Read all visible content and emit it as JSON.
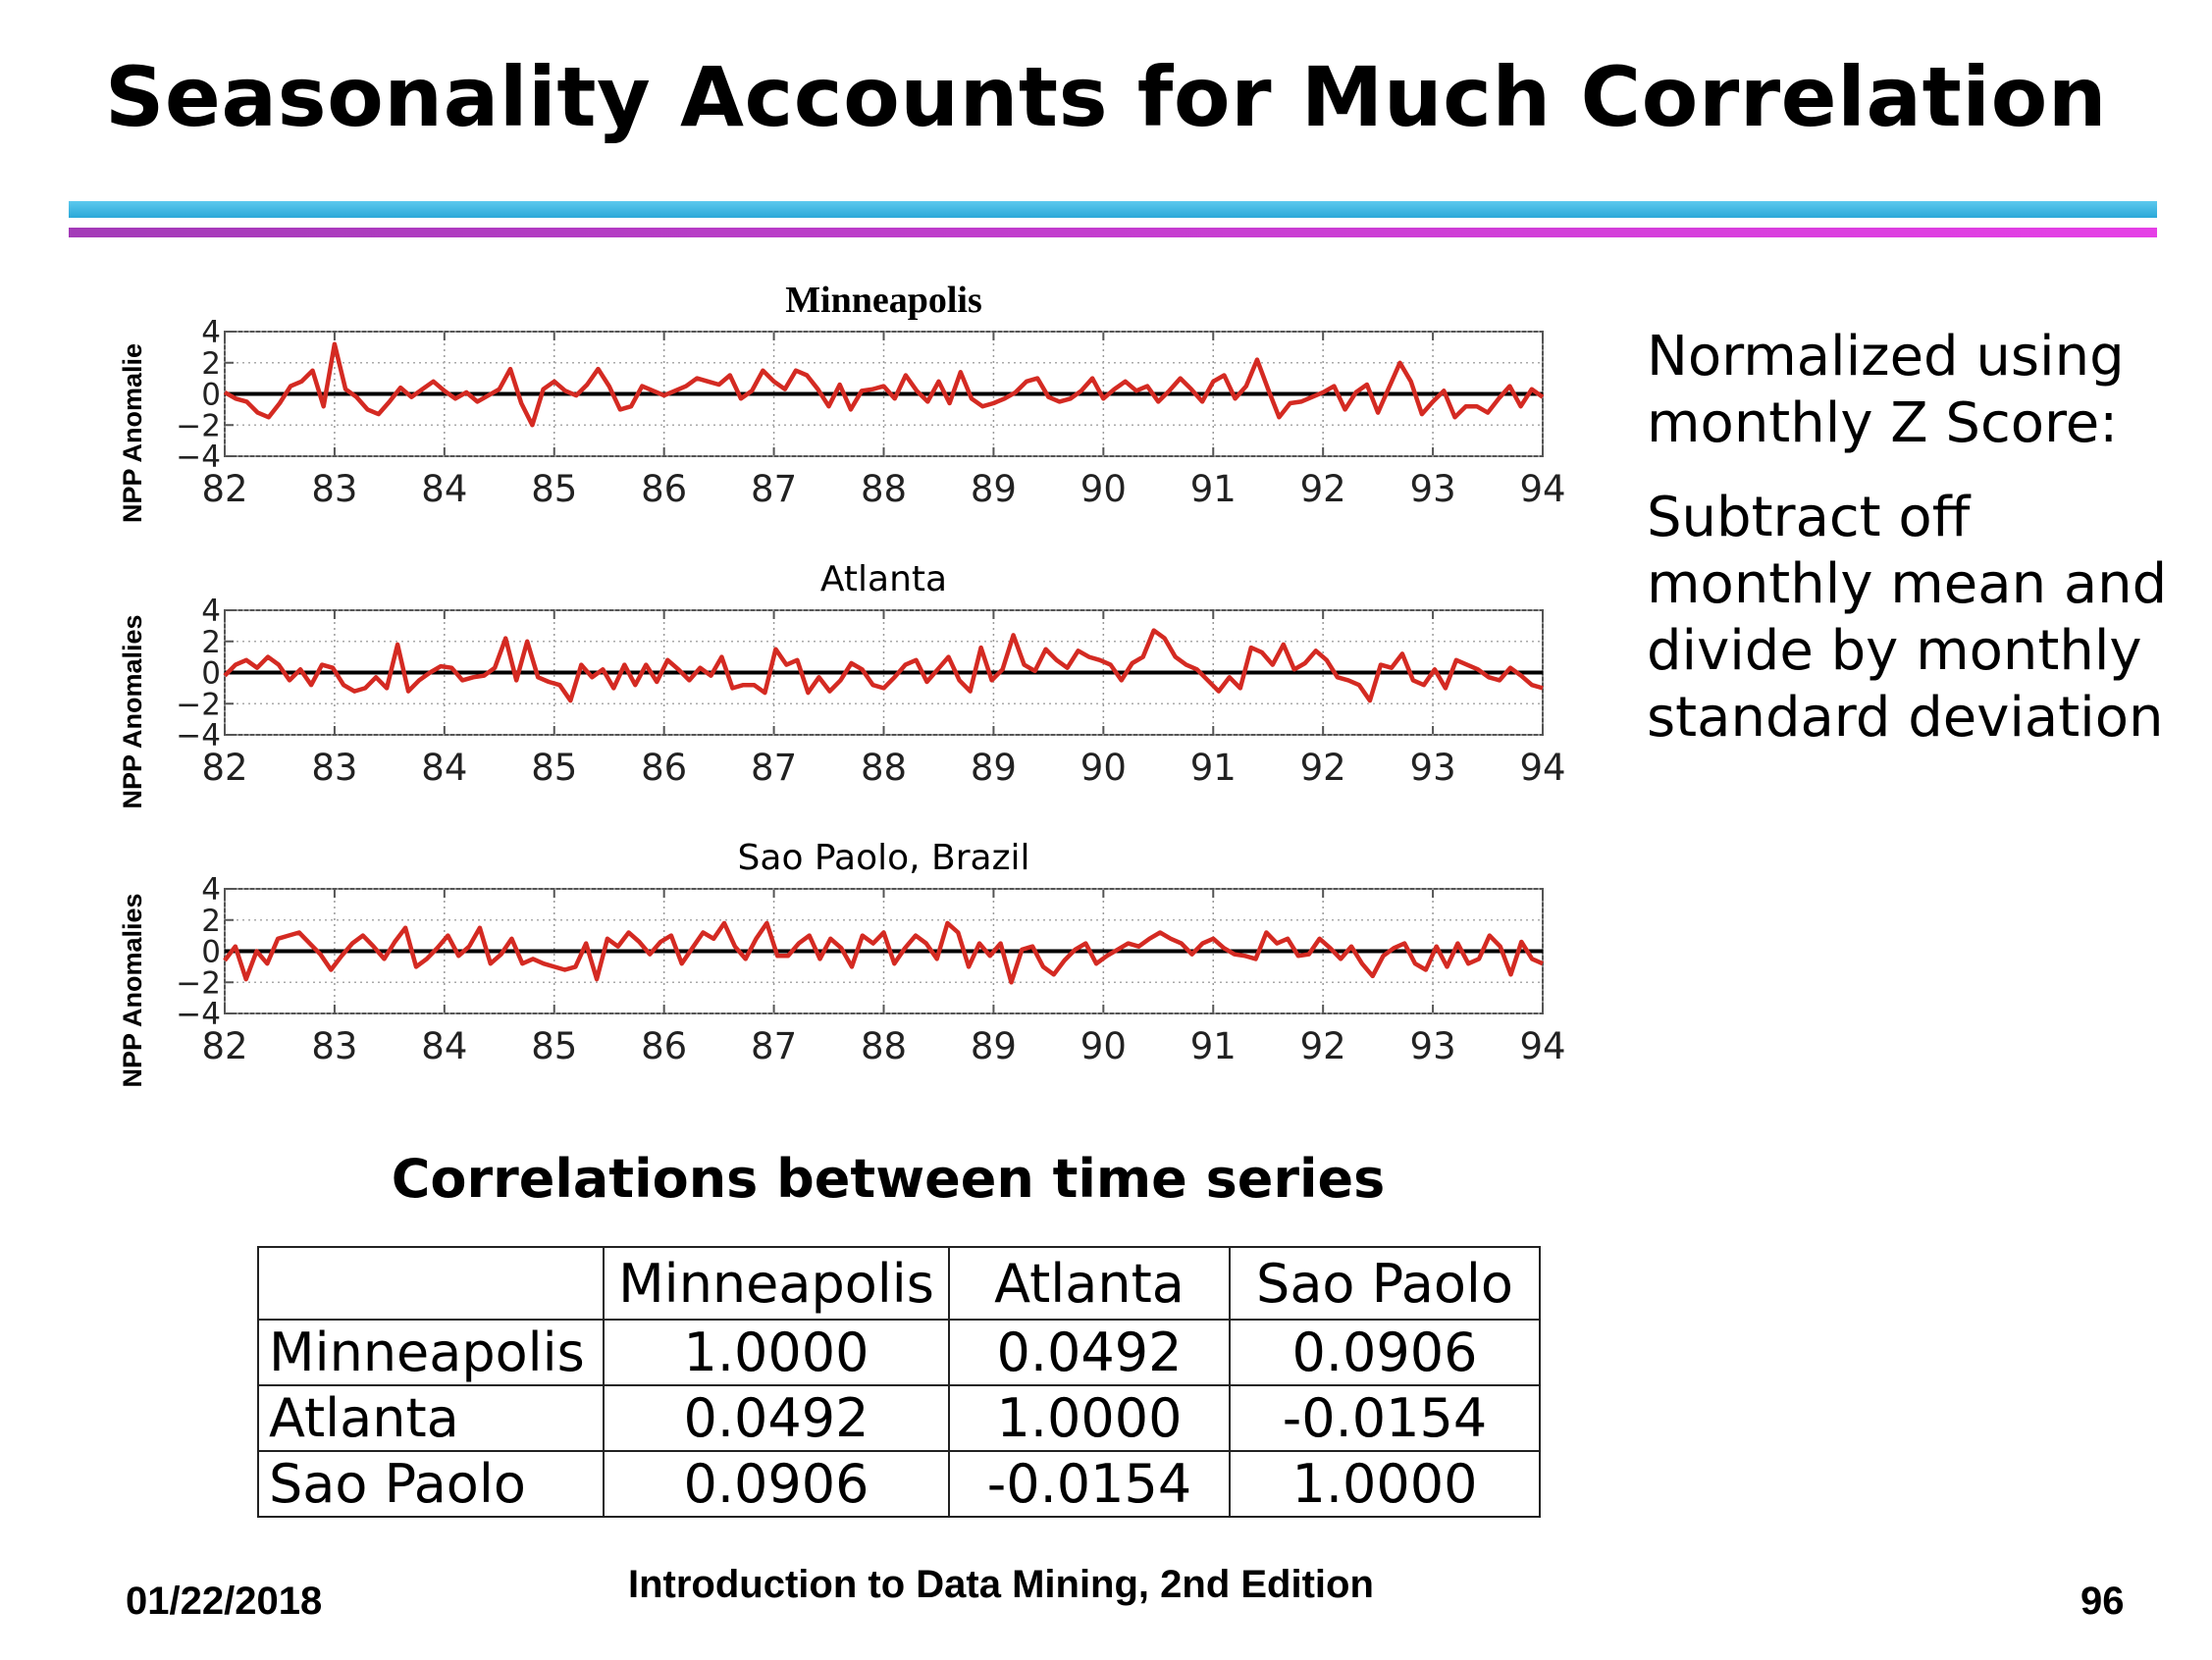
{
  "slide": {
    "title": "Seasonality Accounts for Much Correlation",
    "side_text": [
      "Normalized using monthly Z Score:",
      "Subtract off monthly mean and divide by monthly standard deviation"
    ],
    "footer": {
      "date": "01/22/2018",
      "center": "Introduction to Data Mining, 2nd Edition",
      "page": "96"
    }
  },
  "colors": {
    "series": "#d42a22",
    "zero_line": "#000000",
    "rule_blue": "#2aa8d8",
    "rule_magenta": "#d83fe0"
  },
  "chart_data": [
    {
      "type": "line",
      "title": "Minneapolis",
      "ylabel": "NPP Anomalie",
      "x_ticks": [
        "82",
        "83",
        "84",
        "85",
        "86",
        "87",
        "88",
        "89",
        "90",
        "91",
        "92",
        "93",
        "94"
      ],
      "y_ticks": [
        "4",
        "2",
        "0",
        "−2",
        "−4"
      ],
      "xlim": [
        82,
        94
      ],
      "ylim": [
        -4,
        4
      ],
      "grid": true,
      "series": [
        {
          "values": [
            0.1,
            -0.3,
            -0.5,
            -1.2,
            -1.5,
            -0.6,
            0.5,
            0.8,
            1.5,
            -0.8,
            3.2,
            0.3,
            -0.2,
            -1.0,
            -1.3,
            -0.5,
            0.4,
            -0.2,
            0.3,
            0.8,
            0.2,
            -0.3,
            0.1,
            -0.5,
            -0.1,
            0.3,
            1.6,
            -0.6,
            -2.0,
            0.3,
            0.8,
            0.2,
            -0.1,
            0.6,
            1.6,
            0.5,
            -1.0,
            -0.8,
            0.5,
            0.2,
            -0.1,
            0.2,
            0.5,
            1.0,
            0.8,
            0.6,
            1.2,
            -0.3,
            0.2,
            1.5,
            0.8,
            0.3,
            1.5,
            1.2,
            0.3,
            -0.8,
            0.6,
            -1.0,
            0.2,
            0.3,
            0.5,
            -0.3,
            1.2,
            0.2,
            -0.5,
            0.8,
            -0.6,
            1.4,
            -0.3,
            -0.8,
            -0.6,
            -0.3,
            0.1,
            0.8,
            1.0,
            -0.2,
            -0.5,
            -0.3,
            0.2,
            1.0,
            -0.3,
            0.3,
            0.8,
            0.2,
            0.5,
            -0.5,
            0.2,
            1.0,
            0.3,
            -0.5,
            0.8,
            1.2,
            -0.3,
            0.5,
            2.2,
            0.3,
            -1.5,
            -0.6,
            -0.5,
            -0.2,
            0.1,
            0.5,
            -1.0,
            0.1,
            0.6,
            -1.2,
            0.4,
            2.0,
            0.8,
            -1.3,
            -0.5,
            0.2,
            -1.5,
            -0.8,
            -0.8,
            -1.2,
            -0.3,
            0.5,
            -0.8,
            0.3,
            -0.2
          ],
          "color": "#d42a22"
        }
      ]
    },
    {
      "type": "line",
      "title": "Atlanta",
      "ylabel": "NPP Anomalies",
      "x_ticks": [
        "82",
        "83",
        "84",
        "85",
        "86",
        "87",
        "88",
        "89",
        "90",
        "91",
        "92",
        "93",
        "94"
      ],
      "y_ticks": [
        "4",
        "2",
        "0",
        "−2",
        "−4"
      ],
      "xlim": [
        82,
        94
      ],
      "ylim": [
        -4,
        4
      ],
      "grid": true,
      "series": [
        {
          "values": [
            -0.2,
            0.5,
            0.8,
            0.3,
            1.0,
            0.5,
            -0.5,
            0.2,
            -0.8,
            0.5,
            0.3,
            -0.8,
            -1.2,
            -1.0,
            -0.3,
            -1.0,
            1.8,
            -1.2,
            -0.5,
            0.0,
            0.4,
            0.3,
            -0.5,
            -0.3,
            -0.2,
            0.3,
            2.2,
            -0.5,
            2.0,
            -0.3,
            -0.6,
            -0.8,
            -1.8,
            0.5,
            -0.3,
            0.2,
            -1.0,
            0.5,
            -0.8,
            0.5,
            -0.6,
            0.8,
            0.2,
            -0.5,
            0.3,
            -0.2,
            1.0,
            -1.0,
            -0.8,
            -0.8,
            -1.3,
            1.5,
            0.5,
            0.8,
            -1.3,
            -0.3,
            -1.2,
            -0.5,
            0.6,
            0.2,
            -0.8,
            -1.0,
            -0.3,
            0.5,
            0.8,
            -0.6,
            0.2,
            1.0,
            -0.5,
            -1.2,
            1.6,
            -0.5,
            0.2,
            2.4,
            0.5,
            0.1,
            1.5,
            0.8,
            0.3,
            1.4,
            1.0,
            0.8,
            0.5,
            -0.5,
            0.6,
            1.0,
            2.7,
            2.2,
            1.0,
            0.5,
            0.2,
            -0.5,
            -1.2,
            -0.3,
            -1.0,
            1.6,
            1.3,
            0.5,
            1.8,
            0.2,
            0.6,
            1.4,
            0.8,
            -0.3,
            -0.5,
            -0.8,
            -1.8,
            0.5,
            0.3,
            1.2,
            -0.5,
            -0.8,
            0.2,
            -1.0,
            0.8,
            0.5,
            0.2,
            -0.3,
            -0.5,
            0.3,
            -0.2,
            -0.8,
            -1.0
          ],
          "color": "#d42a22"
        }
      ]
    },
    {
      "type": "line",
      "title": "Sao Paolo, Brazil",
      "ylabel": "NPP Anomalies",
      "x_ticks": [
        "82",
        "83",
        "84",
        "85",
        "86",
        "87",
        "88",
        "89",
        "90",
        "91",
        "92",
        "93",
        "94"
      ],
      "y_ticks": [
        "4",
        "2",
        "0",
        "−2",
        "−4"
      ],
      "xlim": [
        82,
        94
      ],
      "ylim": [
        -4,
        4
      ],
      "grid": true,
      "series": [
        {
          "values": [
            -0.6,
            0.3,
            -1.8,
            0.0,
            -0.8,
            0.8,
            1.0,
            1.2,
            0.5,
            -0.2,
            -1.2,
            -0.3,
            0.5,
            1.0,
            0.3,
            -0.5,
            0.6,
            1.5,
            -1.0,
            -0.5,
            0.2,
            1.0,
            -0.3,
            0.3,
            1.5,
            -0.8,
            -0.2,
            0.8,
            -0.8,
            -0.5,
            -0.8,
            -1.0,
            -1.2,
            -1.0,
            0.5,
            -1.8,
            0.8,
            0.3,
            1.2,
            0.6,
            -0.2,
            0.6,
            1.0,
            -0.8,
            0.2,
            1.2,
            0.8,
            1.8,
            0.3,
            -0.5,
            0.8,
            1.8,
            -0.3,
            -0.3,
            0.5,
            1.0,
            -0.5,
            0.8,
            0.2,
            -1.0,
            1.0,
            0.5,
            1.2,
            -0.8,
            0.2,
            1.0,
            0.5,
            -0.5,
            1.8,
            1.2,
            -1.0,
            0.5,
            -0.3,
            0.5,
            -2.0,
            0.1,
            0.3,
            -1.0,
            -1.5,
            -0.6,
            0.1,
            0.5,
            -0.8,
            -0.3,
            0.1,
            0.5,
            0.3,
            0.8,
            1.2,
            0.8,
            0.5,
            -0.2,
            0.5,
            0.8,
            0.2,
            -0.2,
            -0.3,
            -0.5,
            1.2,
            0.5,
            0.8,
            -0.3,
            -0.2,
            0.8,
            0.2,
            -0.5,
            0.3,
            -0.8,
            -1.6,
            -0.3,
            0.2,
            0.5,
            -0.8,
            -1.2,
            0.3,
            -1.0,
            0.5,
            -0.8,
            -0.5,
            1.0,
            0.3,
            -1.5,
            0.6,
            -0.5,
            -0.8
          ],
          "color": "#d42a22"
        }
      ]
    },
    {
      "type": "table",
      "title": "Correlations between time series",
      "columns": [
        "",
        "Minneapolis",
        "Atlanta",
        "Sao Paolo"
      ],
      "rows": [
        {
          "label": "Minneapolis",
          "values": [
            "1.0000",
            "0.0492",
            "0.0906"
          ]
        },
        {
          "label": "Atlanta",
          "values": [
            "0.0492",
            "1.0000",
            "-0.0154"
          ]
        },
        {
          "label": "Sao Paolo",
          "values": [
            "0.0906",
            "-0.0154",
            "1.0000"
          ]
        }
      ]
    }
  ]
}
